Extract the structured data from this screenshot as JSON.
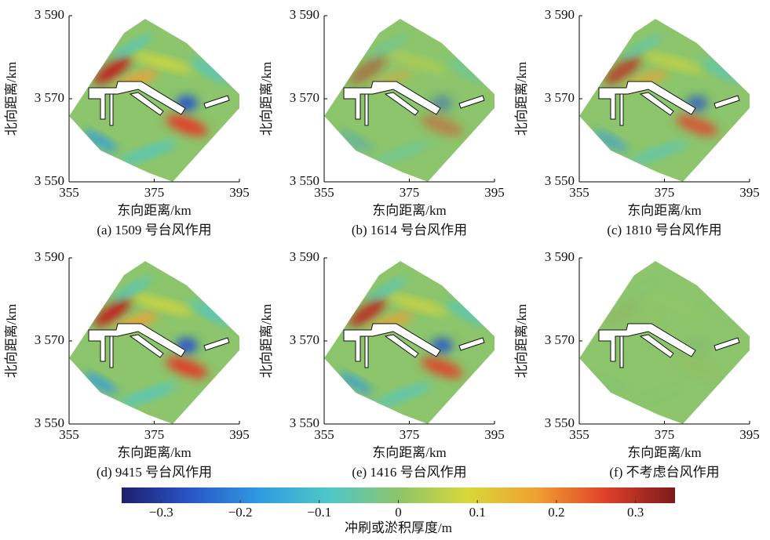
{
  "chart_data": [
    {
      "type": "map",
      "caption": "(a) 1509 号台风作用",
      "xlabel": "东向距离/km",
      "ylabel": "北向距离/km",
      "xlim": [
        355,
        395
      ],
      "ylim": [
        3550,
        3590
      ],
      "xticks": [
        355,
        375,
        395
      ],
      "yticks": [
        {
          "value": 3550,
          "label": "3 550"
        },
        {
          "value": 3570,
          "label": "3 570"
        },
        {
          "value": 3590,
          "label": "3 590"
        }
      ]
    },
    {
      "type": "map",
      "caption": "(b) 1614 号台风作用",
      "xlabel": "东向距离/km",
      "ylabel": "北向距离/km",
      "xlim": [
        355,
        395
      ],
      "ylim": [
        3550,
        3590
      ],
      "xticks": [
        355,
        375,
        395
      ],
      "yticks": [
        {
          "value": 3550,
          "label": "3 550"
        },
        {
          "value": 3570,
          "label": "3 570"
        },
        {
          "value": 3590,
          "label": "3 590"
        }
      ]
    },
    {
      "type": "map",
      "caption": "(c) 1810 号台风作用",
      "xlabel": "东向距离/km",
      "ylabel": "北向距离/km",
      "xlim": [
        355,
        395
      ],
      "ylim": [
        3550,
        3590
      ],
      "xticks": [
        355,
        375,
        395
      ],
      "yticks": [
        {
          "value": 3550,
          "label": "3 550"
        },
        {
          "value": 3570,
          "label": "3 570"
        },
        {
          "value": 3590,
          "label": "3 590"
        }
      ]
    },
    {
      "type": "map",
      "caption": "(d) 9415 号台风作用",
      "xlabel": "东向距离/km",
      "ylabel": "北向距离/km",
      "xlim": [
        355,
        395
      ],
      "ylim": [
        3550,
        3590
      ],
      "xticks": [
        355,
        375,
        395
      ],
      "yticks": [
        {
          "value": 3550,
          "label": "3 550"
        },
        {
          "value": 3570,
          "label": "3 570"
        },
        {
          "value": 3590,
          "label": "3 590"
        }
      ]
    },
    {
      "type": "map",
      "caption": "(e) 1416 号台风作用",
      "xlabel": "东向距离/km",
      "ylabel": "北向距离/km",
      "xlim": [
        355,
        395
      ],
      "ylim": [
        3550,
        3590
      ],
      "xticks": [
        355,
        375,
        395
      ],
      "yticks": [
        {
          "value": 3550,
          "label": "3 550"
        },
        {
          "value": 3570,
          "label": "3 570"
        },
        {
          "value": 3590,
          "label": "3 590"
        }
      ]
    },
    {
      "type": "map",
      "caption": "(f) 不考虑台风作用",
      "xlabel": "东向距离/km",
      "ylabel": "北向距离/km",
      "xlim": [
        355,
        395
      ],
      "ylim": [
        3550,
        3590
      ],
      "xticks": [
        355,
        375,
        395
      ],
      "yticks": [
        {
          "value": 3550,
          "label": "3 550"
        },
        {
          "value": 3570,
          "label": "3 570"
        },
        {
          "value": 3590,
          "label": "3 590"
        }
      ]
    },
    {
      "type": "colorbar",
      "label": "冲刷或淤积厚度/m",
      "xlim": [
        -0.35,
        0.35
      ],
      "colors": [
        "#1b1f6e",
        "#2a56c6",
        "#2f9be0",
        "#4fc7c8",
        "#8cc56b",
        "#d9d83a",
        "#f0a030",
        "#e0402a",
        "#7a1a1a"
      ],
      "xticks": [
        {
          "value": -0.3,
          "label": "−0.3"
        },
        {
          "value": -0.2,
          "label": "−0.2"
        },
        {
          "value": -0.1,
          "label": "−0.1"
        },
        0,
        0.1,
        0.2,
        0.3
      ]
    }
  ]
}
